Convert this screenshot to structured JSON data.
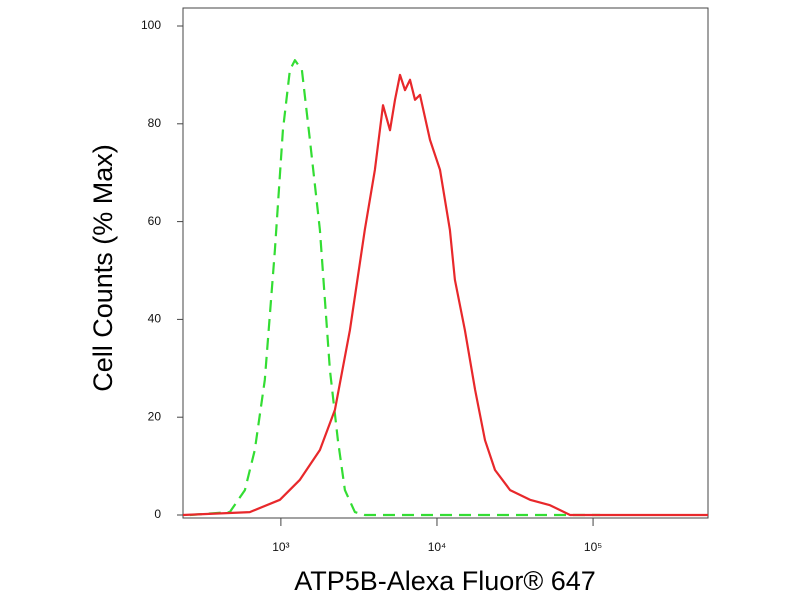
{
  "chart_data": {
    "type": "line",
    "xlabel": "ATP5B-Alexa Fluor® 647",
    "ylabel": "Cell Counts (% Max)",
    "xscale": "log",
    "xlim": [
      236,
      545000
    ],
    "ylim": [
      0,
      100
    ],
    "xticks": [
      {
        "value": 1000,
        "label": "10³"
      },
      {
        "value": 10000,
        "label": "10⁴"
      },
      {
        "value": 100000,
        "label": "10⁵"
      }
    ],
    "yticks": [
      0,
      20,
      40,
      60,
      80,
      100
    ],
    "series": [
      {
        "color": "#33dd33",
        "dash": true,
        "x": [
          261,
          471,
          588,
          681,
          789,
          915,
          1030,
          1142,
          1229,
          1364,
          1535,
          1778,
          2060,
          2318,
          2570,
          2978,
          3451,
          12100,
          111000
        ],
        "values": [
          0,
          0.6,
          5.1,
          13.3,
          27.6,
          54.2,
          78.7,
          91,
          93,
          91,
          76.7,
          58.3,
          29.7,
          15.3,
          5.1,
          0.6,
          0,
          0,
          0
        ]
      },
      {
        "color": "#e8282b",
        "dash": false,
        "x": [
          236,
          632,
          986,
          1323,
          1778,
          2219,
          2768,
          3451,
          4005,
          4509,
          5000,
          5383,
          5798,
          6237,
          6714,
          7228,
          7780,
          9020,
          10450,
          12100,
          13030,
          15100,
          17540,
          20320,
          23550,
          29400,
          39450,
          52970,
          71260,
          95700,
          545000
        ],
        "values": [
          0,
          0.6,
          3.1,
          7.2,
          13.3,
          21.5,
          37.8,
          58.3,
          70.6,
          83.8,
          78.7,
          84.9,
          90,
          86.9,
          89,
          84.9,
          85.9,
          76.7,
          70.6,
          58.3,
          48.1,
          37.8,
          25.6,
          15.3,
          9.2,
          5.1,
          3.1,
          2,
          0,
          0,
          0
        ]
      }
    ]
  }
}
